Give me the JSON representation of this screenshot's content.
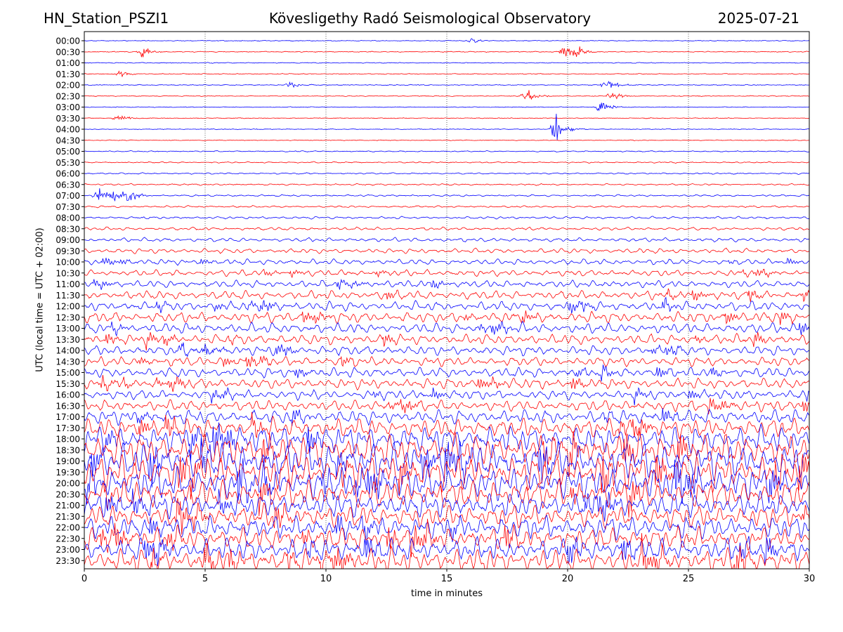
{
  "header": {
    "left": "HN_Station_PSZI1",
    "center": "Kövesligethy Radó Seismological Observatory",
    "right": "2025-07-21"
  },
  "chart_data": {
    "type": "line",
    "title": "Kövesligethy Radó Seismological Observatory",
    "xlabel": "time in minutes",
    "ylabel": "UTC (local time = UTC + 02:00)",
    "xlim": [
      0,
      30
    ],
    "x_ticks": [
      0,
      5,
      10,
      15,
      20,
      25,
      30
    ],
    "grid": "vertical dotted at 5-minute intervals",
    "trace_colors": [
      "#0000ff",
      "#ff0000"
    ],
    "rows": [
      "00:00",
      "00:30",
      "01:00",
      "01:30",
      "02:00",
      "02:30",
      "03:00",
      "03:30",
      "04:00",
      "04:30",
      "05:00",
      "05:30",
      "06:00",
      "06:30",
      "07:00",
      "07:30",
      "08:00",
      "08:30",
      "09:00",
      "09:30",
      "10:00",
      "10:30",
      "11:00",
      "11:30",
      "12:00",
      "12:30",
      "13:00",
      "13:30",
      "14:00",
      "14:30",
      "15:00",
      "15:30",
      "16:00",
      "16:30",
      "17:00",
      "17:30",
      "18:00",
      "18:30",
      "19:00",
      "19:30",
      "20:00",
      "20:30",
      "21:00",
      "21:30",
      "22:00",
      "22:30",
      "23:00",
      "23:30"
    ],
    "amplitude_level": [
      0.03,
      0.04,
      0.04,
      0.04,
      0.04,
      0.04,
      0.03,
      0.03,
      0.03,
      0.03,
      0.06,
      0.07,
      0.08,
      0.09,
      0.1,
      0.11,
      0.14,
      0.17,
      0.22,
      0.28,
      0.32,
      0.36,
      0.42,
      0.5,
      0.55,
      0.62,
      0.6,
      0.58,
      0.55,
      0.55,
      0.58,
      0.6,
      0.55,
      0.62,
      0.8,
      1.1,
      1.5,
      1.8,
      2.0,
      2.0,
      1.9,
      1.6,
      1.4,
      1.3,
      1.3,
      1.3,
      1.3,
      1.4
    ],
    "events": [
      {
        "row": "00:00",
        "minute": 16.0,
        "strength": 0.3
      },
      {
        "row": "00:30",
        "minute": 2.4,
        "strength": 0.5
      },
      {
        "row": "00:30",
        "minute": 19.8,
        "strength": 0.7
      },
      {
        "row": "00:30",
        "minute": 20.4,
        "strength": 0.6
      },
      {
        "row": "01:30",
        "minute": 1.5,
        "strength": 0.3
      },
      {
        "row": "02:00",
        "minute": 8.5,
        "strength": 0.3
      },
      {
        "row": "02:00",
        "minute": 21.6,
        "strength": 0.6
      },
      {
        "row": "02:30",
        "minute": 18.3,
        "strength": 0.8
      },
      {
        "row": "02:30",
        "minute": 21.8,
        "strength": 0.5
      },
      {
        "row": "03:00",
        "minute": 21.4,
        "strength": 0.7
      },
      {
        "row": "03:30",
        "minute": 1.4,
        "strength": 0.4
      },
      {
        "row": "04:00",
        "minute": 19.5,
        "strength": 1.2
      },
      {
        "row": "07:00",
        "minute": 0.6,
        "strength": 0.8
      },
      {
        "row": "07:00",
        "minute": 1.2,
        "strength": 0.6
      },
      {
        "row": "07:00",
        "minute": 1.8,
        "strength": 0.9
      },
      {
        "row": "14:00",
        "minute": 5.0,
        "strength": 0.8
      },
      {
        "row": "14:00",
        "minute": 4.0,
        "strength": 0.6
      }
    ]
  }
}
